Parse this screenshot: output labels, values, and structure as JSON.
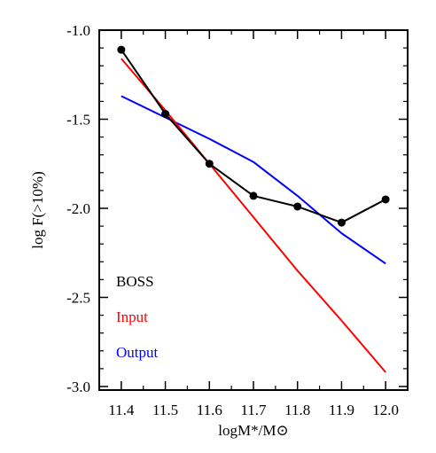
{
  "chart_data": {
    "type": "line",
    "title": "",
    "xlabel": "logM*/M⊙",
    "ylabel": "log F(>10%)",
    "xlim": [
      11.35,
      12.05
    ],
    "ylim": [
      -3.02,
      -1.0
    ],
    "xticks": [
      11.4,
      11.5,
      11.6,
      11.7,
      11.8,
      11.9,
      12.0
    ],
    "xtick_labels": [
      "11.4",
      "11.5",
      "11.6",
      "11.7",
      "11.8",
      "11.9",
      "12.0"
    ],
    "yticks": [
      -1.0,
      -1.5,
      -2.0,
      -2.5,
      -3.0
    ],
    "ytick_labels": [
      "-1.0",
      "-1.5",
      "-2.0",
      "-2.5",
      "-3.0"
    ],
    "grid": false,
    "legend_position": "bottom-left",
    "series": [
      {
        "name": "BOSS",
        "color": "#000000",
        "markers": true,
        "x": [
          11.4,
          11.5,
          11.6,
          11.7,
          11.8,
          11.9,
          12.0
        ],
        "y": [
          -1.11,
          -1.47,
          -1.75,
          -1.93,
          -1.99,
          -2.08,
          -1.95
        ]
      },
      {
        "name": "Input",
        "color": "#ff0000",
        "markers": false,
        "x": [
          11.4,
          11.5,
          11.6,
          11.7,
          11.8,
          11.9,
          12.0
        ],
        "y": [
          -1.16,
          -1.45,
          -1.75,
          -2.05,
          -2.35,
          -2.63,
          -2.92
        ]
      },
      {
        "name": "Output",
        "color": "#0000ff",
        "markers": false,
        "x": [
          11.4,
          11.5,
          11.6,
          11.7,
          11.8,
          11.9,
          12.0
        ],
        "y": [
          -1.37,
          -1.49,
          -1.61,
          -1.74,
          -1.93,
          -2.14,
          -2.31
        ]
      }
    ]
  }
}
